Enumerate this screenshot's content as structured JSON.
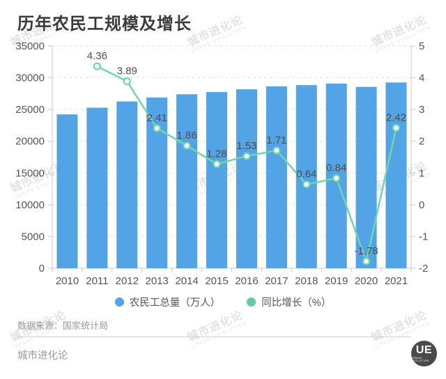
{
  "page": {
    "title": "历年农民工规模及增长",
    "source": "数据来源：国家统计局",
    "brand": "城市进化论",
    "logo_text": "UE",
    "logo_sub": "URBAN EVOLUTION",
    "watermark": {
      "cn": "城市进化论",
      "en": "URBAN EVOLUTION"
    }
  },
  "colors": {
    "bar": "#52a4e6",
    "line": "#6fd6a8",
    "point_fill": "#ffffff",
    "grid": "#e3e3e3",
    "axis_line": "#c9c9c9",
    "axis_label": "#555555",
    "value_label": "#4d4d4d",
    "title": "#3a3a3a",
    "footer_text": "#9a9a9a",
    "logo_bg": "#4a4a4a"
  },
  "legend": [
    {
      "label": "农民工总量（万人）",
      "color": "#52a4e6"
    },
    {
      "label": "同比增长（%）",
      "color": "#5ecfa0"
    }
  ],
  "chart_data": {
    "type": "bar",
    "title": "历年农民工规模及增长",
    "categories": [
      "2010",
      "2011",
      "2012",
      "2013",
      "2014",
      "2015",
      "2016",
      "2017",
      "2018",
      "2019",
      "2020",
      "2021"
    ],
    "series": [
      {
        "name": "农民工总量（万人）",
        "kind": "bar",
        "yaxis": "left",
        "color": "#52a4e6",
        "values": [
          24223,
          25278,
          26261,
          26894,
          27395,
          27747,
          28171,
          28652,
          28836,
          29077,
          28560,
          29251
        ]
      },
      {
        "name": "同比增长（%）",
        "kind": "line",
        "yaxis": "right",
        "color": "#6fd6a8",
        "values": [
          null,
          4.36,
          3.89,
          2.41,
          1.86,
          1.28,
          1.53,
          1.71,
          0.64,
          0.84,
          -1.78,
          2.42
        ]
      }
    ],
    "left_axis": {
      "min": 0,
      "max": 35000,
      "step": 5000,
      "ticks": [
        0,
        5000,
        10000,
        15000,
        20000,
        25000,
        30000,
        35000
      ]
    },
    "right_axis": {
      "min": -2,
      "max": 5,
      "step": 1,
      "ticks": [
        -2,
        -1,
        0,
        1,
        2,
        3,
        4,
        5
      ]
    },
    "grid": "horizontal-dashed",
    "legend_position": "bottom",
    "xlabel": "",
    "ylabel": ""
  }
}
